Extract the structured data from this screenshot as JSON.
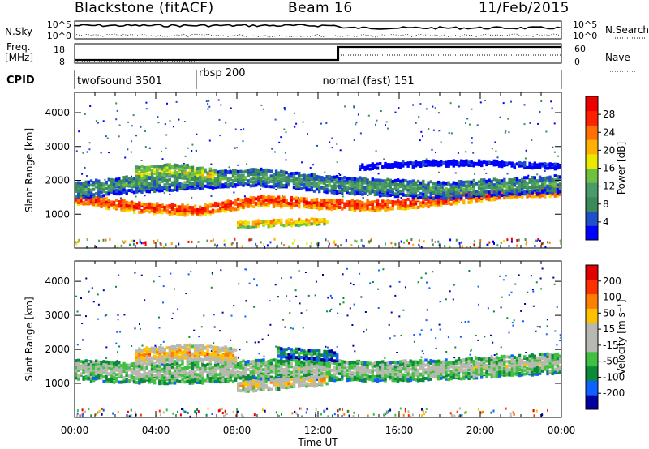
{
  "header": {
    "radar": "Blackstone (fitACF)",
    "beam": "Beam 16",
    "date": "11/Feb/2015"
  },
  "top_panel": {
    "nsky_label": "N.Sky",
    "nsearch_label": "N.Search",
    "noise_ticks": [
      "10^5",
      "10^0"
    ],
    "freq_label": "Freq.",
    "freq_unit": "[MHz]",
    "freq_ticks": [
      "18",
      "8"
    ],
    "nave_label": "Nave",
    "nave_ticks": [
      "60",
      "0"
    ],
    "cpid_label": "CPID",
    "cpid_segments": [
      {
        "name": "twofsound 3501",
        "start_hour": 0,
        "end_hour": 6
      },
      {
        "name": "rbsp 200",
        "start_hour": 6,
        "end_hour": 12.1
      },
      {
        "name": "normal (fast) 151",
        "start_hour": 12.1,
        "end_hour": 24
      }
    ]
  },
  "colors": {
    "power": [
      "#0000ff",
      "#2050c8",
      "#3a8a5a",
      "#4a9a6a",
      "#6fc040",
      "#e8e800",
      "#ffb000",
      "#ff7000",
      "#ff2000",
      "#ee0000"
    ],
    "velocity": [
      "#0000a0",
      "#1060ff",
      "#0a8a3a",
      "#40c040",
      "#b8b8b0",
      "#b8b8b0",
      "#ffc000",
      "#ff8000",
      "#ff3000",
      "#e00000"
    ]
  },
  "chart_data": [
    {
      "type": "heatmap",
      "name": "power",
      "ylabel": "Slant Range [km]",
      "xlabel": "",
      "xlim": [
        0,
        24
      ],
      "ylim": [
        0,
        4600
      ],
      "yticks": [
        "4000",
        "3000",
        "2000",
        "1000"
      ],
      "colorbar_label": "Power [dB]",
      "colorbar_ticks": [
        "28",
        "24",
        "20",
        "16",
        "12",
        "8",
        "4"
      ],
      "bands": [
        {
          "hours": [
            0,
            24
          ],
          "range_center": [
            1450,
            1200,
            1100,
            1400,
            1300,
            1250,
            1400,
            1600,
            1700
          ],
          "width": 300,
          "level": 0.9
        },
        {
          "hours": [
            0,
            24
          ],
          "range_center": [
            1700,
            1900,
            2000,
            2100,
            1900,
            1800,
            1700,
            1800,
            1900
          ],
          "width": 500,
          "level": 0.35
        },
        {
          "hours": [
            3,
            7
          ],
          "range_center": [
            2200,
            2300,
            2100
          ],
          "width": 400,
          "level": 0.55
        },
        {
          "hours": [
            8,
            12.5
          ],
          "range_center": [
            700,
            750,
            800
          ],
          "width": 200,
          "level": 0.7
        },
        {
          "hours": [
            14,
            24
          ],
          "range_center": [
            2400,
            2500,
            2500,
            2400
          ],
          "width": 150,
          "level": 0.1
        }
      ]
    },
    {
      "type": "heatmap",
      "name": "velocity",
      "ylabel": "Slant Range [km]",
      "xlabel": "Time UT",
      "xlim": [
        0,
        24
      ],
      "ylim": [
        0,
        4600
      ],
      "xticks": [
        "00:00",
        "04:00",
        "08:00",
        "12:00",
        "16:00",
        "20:00",
        "00:00"
      ],
      "yticks": [
        "4000",
        "3000",
        "2000",
        "1000"
      ],
      "colorbar_label": "Velocity [m s⁻¹]",
      "colorbar_ticks": [
        "200",
        "100",
        "50",
        "15",
        "-15",
        "-50",
        "-100",
        "-200"
      ],
      "bands": [
        {
          "hours": [
            0,
            24
          ],
          "range_center": [
            1400,
            1300,
            1300,
            1400,
            1400,
            1350,
            1400,
            1500,
            1600
          ],
          "width": 600,
          "level": 0.5
        },
        {
          "hours": [
            3,
            8
          ],
          "range_center": [
            1800,
            1900,
            1800
          ],
          "width": 500,
          "level": 0.7
        },
        {
          "hours": [
            8,
            12.5
          ],
          "range_center": [
            900,
            1000,
            1100
          ],
          "width": 300,
          "level": 0.65
        },
        {
          "hours": [
            10,
            13
          ],
          "range_center": [
            1900,
            1800
          ],
          "width": 300,
          "level": 0.3
        }
      ]
    }
  ]
}
